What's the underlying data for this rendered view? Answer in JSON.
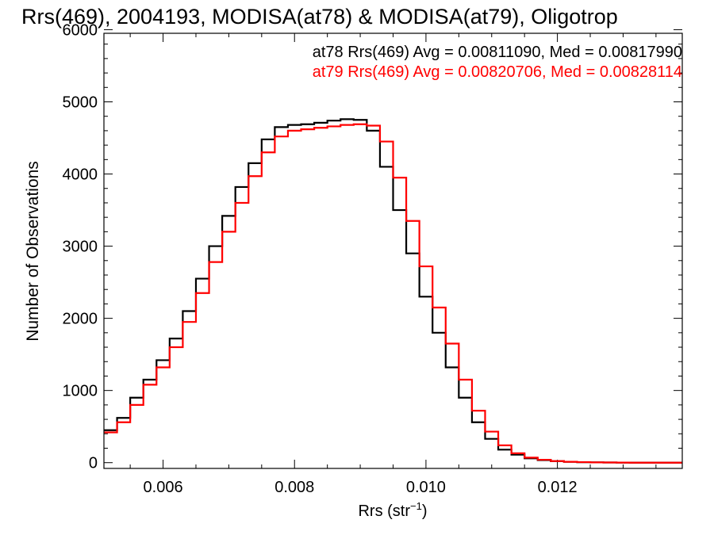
{
  "chart_data": {
    "type": "line",
    "title": "Rrs(469), 2004193, MODISA(at78) & MODISA(at79), Oligotrop",
    "xlabel": "Rrs (str",
    "xlabel_sup": "−1",
    "xlabel_suffix": ")",
    "ylabel": "Number of Observations",
    "xlim": [
      0.0051,
      0.0139
    ],
    "ylim": [
      -80,
      5950
    ],
    "x_ticks": [
      0.006,
      0.008,
      0.01,
      0.012
    ],
    "x_tick_labels": [
      "0.006",
      "0.008",
      "0.010",
      "0.012"
    ],
    "y_ticks": [
      0,
      1000,
      2000,
      3000,
      4000,
      5000,
      6000
    ],
    "y_tick_labels": [
      "0",
      "1000",
      "2000",
      "3000",
      "4000",
      "5000",
      "6000"
    ],
    "grid": false,
    "legend": "top-right",
    "annotations": [
      "at78 Rrs(469) Avg = 0.00811090, Med = 0.00817990",
      "at79 Rrs(469) Avg = 0.00820706, Med = 0.00828114"
    ],
    "series": [
      {
        "name": "at78",
        "color": "#000000",
        "x": [
          0.0051,
          0.0053,
          0.0055,
          0.0057,
          0.0059,
          0.0061,
          0.0063,
          0.0065,
          0.0067,
          0.0069,
          0.0071,
          0.0073,
          0.0075,
          0.0077,
          0.0079,
          0.0081,
          0.0083,
          0.0085,
          0.0087,
          0.0089,
          0.0091,
          0.0093,
          0.0095,
          0.0097,
          0.0099,
          0.0101,
          0.0103,
          0.0105,
          0.0107,
          0.0109,
          0.0111,
          0.0113,
          0.0115,
          0.0117,
          0.0119,
          0.0121,
          0.0123,
          0.0125,
          0.0127,
          0.0129,
          0.0131,
          0.0133,
          0.0135,
          0.0137,
          0.0139
        ],
        "y": [
          450,
          620,
          900,
          1150,
          1420,
          1720,
          2100,
          2550,
          3000,
          3420,
          3820,
          4150,
          4480,
          4650,
          4680,
          4690,
          4710,
          4740,
          4760,
          4750,
          4600,
          4100,
          3500,
          2900,
          2300,
          1800,
          1320,
          900,
          560,
          330,
          180,
          110,
          60,
          35,
          20,
          12,
          6,
          4,
          2,
          1,
          0,
          0,
          0,
          0,
          0
        ]
      },
      {
        "name": "at79",
        "color": "#ff0000",
        "x": [
          0.0051,
          0.0053,
          0.0055,
          0.0057,
          0.0059,
          0.0061,
          0.0063,
          0.0065,
          0.0067,
          0.0069,
          0.0071,
          0.0073,
          0.0075,
          0.0077,
          0.0079,
          0.0081,
          0.0083,
          0.0085,
          0.0087,
          0.0089,
          0.0091,
          0.0093,
          0.0095,
          0.0097,
          0.0099,
          0.0101,
          0.0103,
          0.0105,
          0.0107,
          0.0109,
          0.0111,
          0.0113,
          0.0115,
          0.0117,
          0.0119,
          0.0121,
          0.0123,
          0.0125,
          0.0127,
          0.0129,
          0.0131,
          0.0133,
          0.0135,
          0.0137,
          0.0139
        ],
        "y": [
          420,
          560,
          800,
          1080,
          1320,
          1600,
          1950,
          2350,
          2780,
          3200,
          3600,
          3970,
          4300,
          4520,
          4600,
          4620,
          4640,
          4660,
          4680,
          4690,
          4670,
          4450,
          3950,
          3350,
          2720,
          2150,
          1650,
          1150,
          720,
          430,
          240,
          130,
          70,
          40,
          22,
          12,
          7,
          4,
          2,
          1,
          0,
          0,
          0,
          0,
          0
        ]
      }
    ]
  }
}
